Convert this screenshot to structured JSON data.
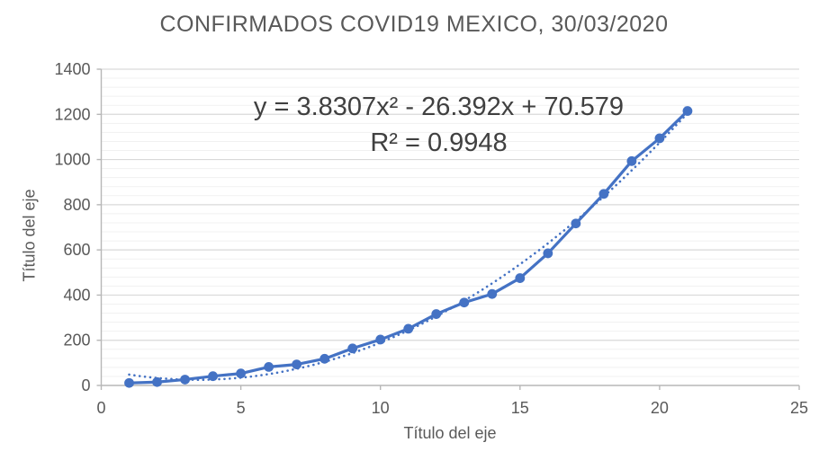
{
  "chart_data": {
    "type": "line",
    "title": "CONFIRMADOS COVID19 MEXICO, 30/03/2020",
    "xlabel": "Título del eje",
    "ylabel": "Título del eje",
    "x": [
      1,
      2,
      3,
      4,
      5,
      6,
      7,
      8,
      9,
      10,
      11,
      12,
      13,
      14,
      15,
      16,
      17,
      18,
      19,
      20,
      21
    ],
    "values": [
      11,
      15,
      26,
      41,
      53,
      82,
      93,
      118,
      164,
      203,
      251,
      316,
      367,
      405,
      475,
      585,
      717,
      848,
      993,
      1094,
      1215
    ],
    "xlim": [
      0,
      25
    ],
    "ylim": [
      0,
      1400
    ],
    "x_ticks": [
      0,
      5,
      10,
      15,
      20,
      25
    ],
    "y_ticks": [
      0,
      200,
      400,
      600,
      800,
      1000,
      1200,
      1400
    ],
    "y_minor_unit": 40,
    "grid": "horizontal-major-and-minor",
    "legend": "none",
    "marker": "circle",
    "trendline": {
      "type": "polynomial",
      "degree": 2,
      "coefficients": {
        "a": 3.8307,
        "b": -26.392,
        "c": 70.579
      },
      "r_squared": 0.9948,
      "style": "dotted",
      "equation_text": "y = 3.8307x² - 26.392x + 70.579",
      "r2_text": "R² = 0.9948"
    },
    "colors": {
      "series": "#4472C4",
      "trendline": "#4472C4",
      "title": "#595959",
      "annotation": "#404040",
      "tick_labels": "#595959",
      "axis_titles": "#595959",
      "gridline_major": "#D9D9D9",
      "gridline_minor": "#F1F1F1",
      "axis_line": "#B7B7B7",
      "background": "#FFFFFF"
    }
  }
}
